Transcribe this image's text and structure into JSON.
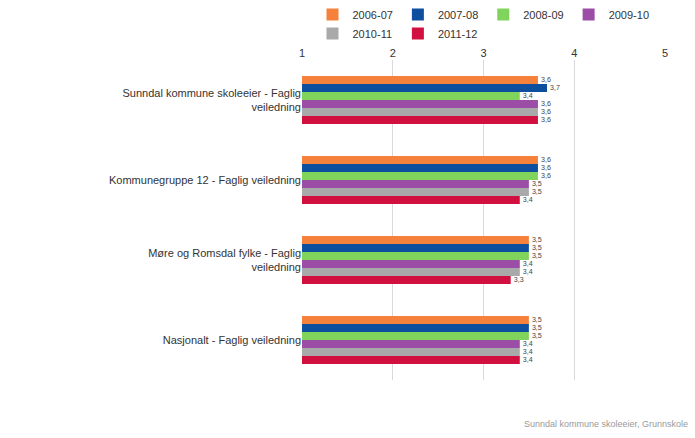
{
  "chart_data": {
    "type": "bar",
    "orientation": "horizontal",
    "categories": [
      "Sunndal kommune skoleeier - Faglig veiledning",
      "Kommunegruppe 12 - Faglig veiledning",
      "Møre og Romsdal fylke - Faglig veiledning",
      "Nasjonalt - Faglig veiledning"
    ],
    "series": [
      {
        "name": "2006-07",
        "color": "#f5813a",
        "values": [
          3.6,
          3.6,
          3.5,
          3.5
        ],
        "value_labels": [
          "3,6",
          "3,6",
          "3,5",
          "3,5"
        ]
      },
      {
        "name": "2007-08",
        "color": "#0d4f9e",
        "values": [
          3.7,
          3.6,
          3.5,
          3.5
        ],
        "value_labels": [
          "3,7",
          "3,6",
          "3,5",
          "3,5"
        ]
      },
      {
        "name": "2008-09",
        "color": "#80d45c",
        "values": [
          3.4,
          3.6,
          3.5,
          3.5
        ],
        "value_labels": [
          "3,4",
          "3,6",
          "3,5",
          "3,5"
        ]
      },
      {
        "name": "2009-10",
        "color": "#9c4ea6",
        "values": [
          3.6,
          3.5,
          3.4,
          3.4
        ],
        "value_labels": [
          "3,6",
          "3,5",
          "3,4",
          "3,4"
        ]
      },
      {
        "name": "2010-11",
        "color": "#a9a9a9",
        "values": [
          3.6,
          3.5,
          3.4,
          3.4
        ],
        "value_labels": [
          "3,6",
          "3,5",
          "3,4",
          "3,4"
        ]
      },
      {
        "name": "2011-12",
        "color": "#d2103f",
        "values": [
          3.6,
          3.4,
          3.3,
          3.4
        ],
        "value_labels": [
          "3,6",
          "3,4",
          "3,3",
          "3,4"
        ]
      }
    ],
    "xlim": [
      1,
      5
    ],
    "xticks": [
      1,
      2,
      3,
      4,
      5
    ],
    "grid": true,
    "legend": "top",
    "data_labels": true,
    "annotation": "Sunndal kommune skoleeier, Grunnskole"
  }
}
